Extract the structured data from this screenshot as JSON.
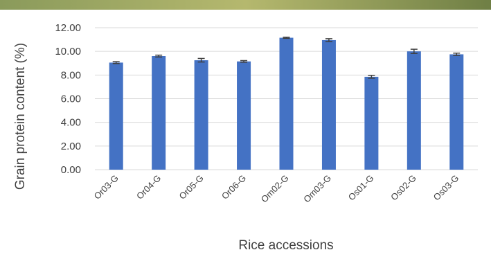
{
  "colors": {
    "bar": "#4472C4",
    "grid": "#d9d9d9",
    "error_bar": "#404040",
    "banner": [
      "#8a9a5b",
      "#b5b86e",
      "#6f7f45"
    ]
  },
  "chart_data": {
    "type": "bar",
    "title": "",
    "xlabel": "Rice accessions",
    "ylabel": "Grain protein content (%)",
    "categories": [
      "Or03-G",
      "Or04-G",
      "Or05-G",
      "Or06-G",
      "Om02-G",
      "Om03-G",
      "Os01-G",
      "Os02-G",
      "Os03-G"
    ],
    "values": [
      9.05,
      9.6,
      9.25,
      9.15,
      11.15,
      10.95,
      7.85,
      10.0,
      9.75
    ],
    "error": [
      0.08,
      0.08,
      0.15,
      0.07,
      0.05,
      0.12,
      0.12,
      0.18,
      0.1
    ],
    "ylim": [
      0,
      12
    ],
    "yticks": [
      "0.00",
      "2.00",
      "4.00",
      "6.00",
      "8.00",
      "10.00",
      "12.00"
    ],
    "grid": true,
    "legend": "none"
  }
}
